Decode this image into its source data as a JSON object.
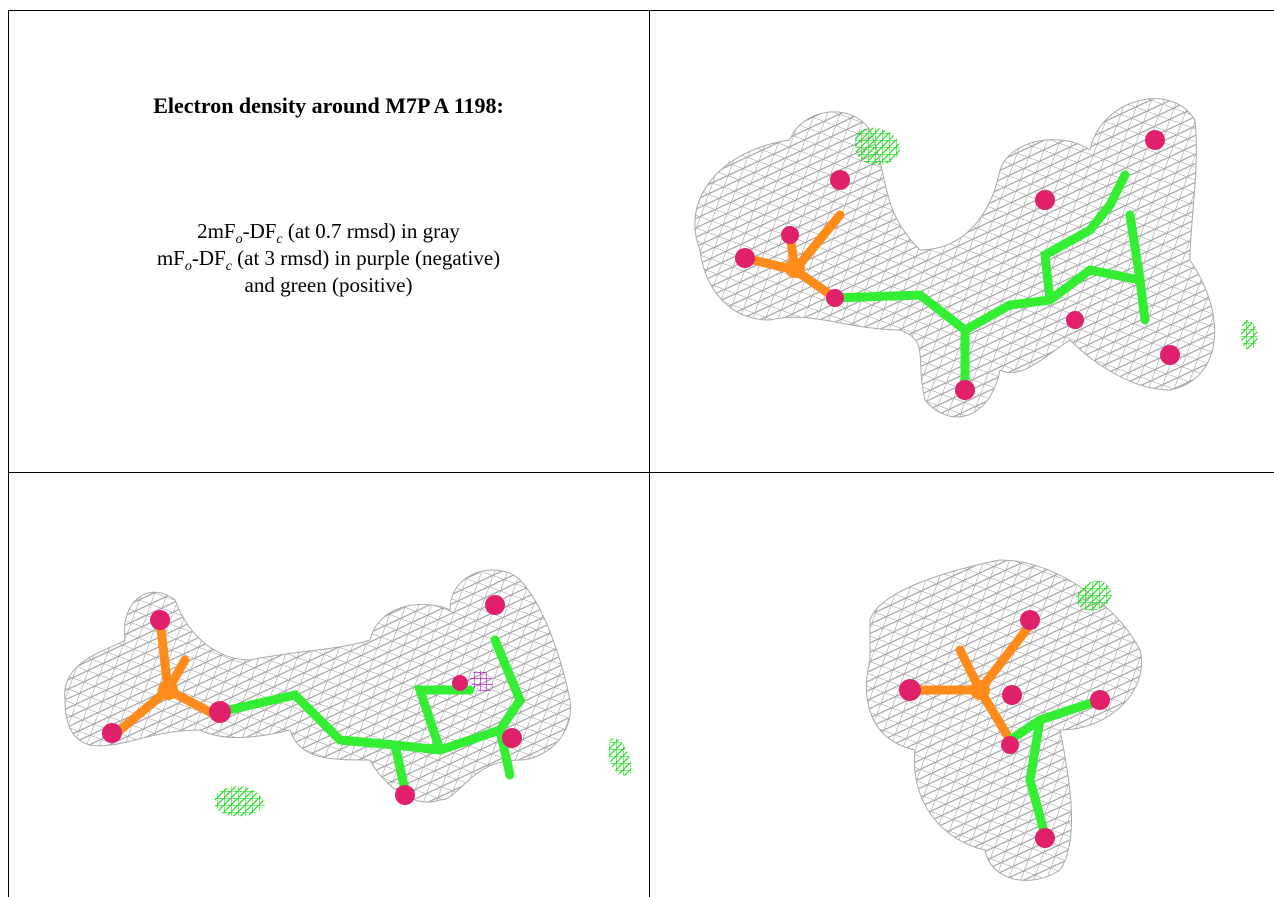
{
  "header": {
    "title": "Electron density around M7P A 1198:"
  },
  "legend": {
    "lines": [
      [
        "2mF",
        "o",
        "-DF",
        "c",
        " (at 0.7 rmsd) in gray"
      ],
      [
        "mF",
        "o",
        "-DF",
        "c",
        " (at 3 rmsd) in purple (negative)"
      ],
      [
        "and green (positive)"
      ]
    ]
  }
}
